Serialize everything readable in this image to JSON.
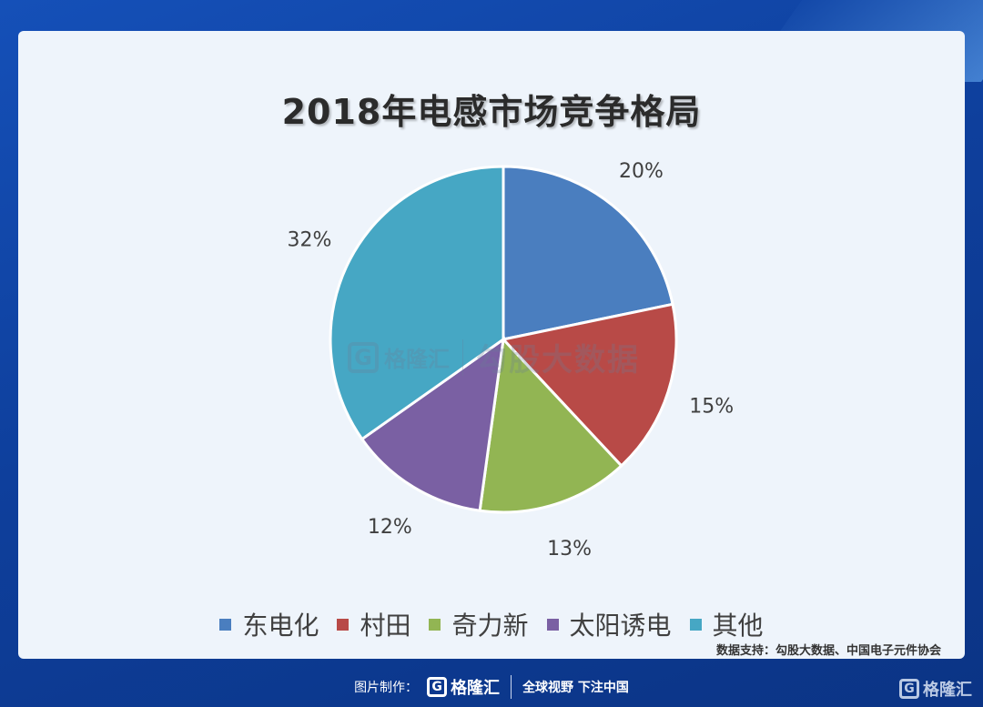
{
  "chart_data": {
    "type": "pie",
    "title": "2018年电感市场竞争格局",
    "categories": [
      "东电化",
      "村田",
      "奇力新",
      "太阳诱电",
      "其他"
    ],
    "values": [
      20,
      15,
      13,
      12,
      32
    ],
    "labels": [
      "20%",
      "15%",
      "13%",
      "12%",
      "32%"
    ],
    "colors": [
      "#4a7ebf",
      "#b84a47",
      "#92b553",
      "#7a60a3",
      "#46a7c4"
    ],
    "legend_position": "bottom"
  },
  "source": "数据支持：勾股大数据、中国电子元件协会",
  "watermark": {
    "logo_letter": "G",
    "brand": "格隆汇",
    "text": "勾股大数据"
  },
  "footer": {
    "label": "图片制作：",
    "logo_letter": "G",
    "brand": "格隆汇",
    "slogan": "全球视野 下注中国"
  },
  "corner": {
    "logo_letter": "G",
    "brand": "格隆汇"
  }
}
